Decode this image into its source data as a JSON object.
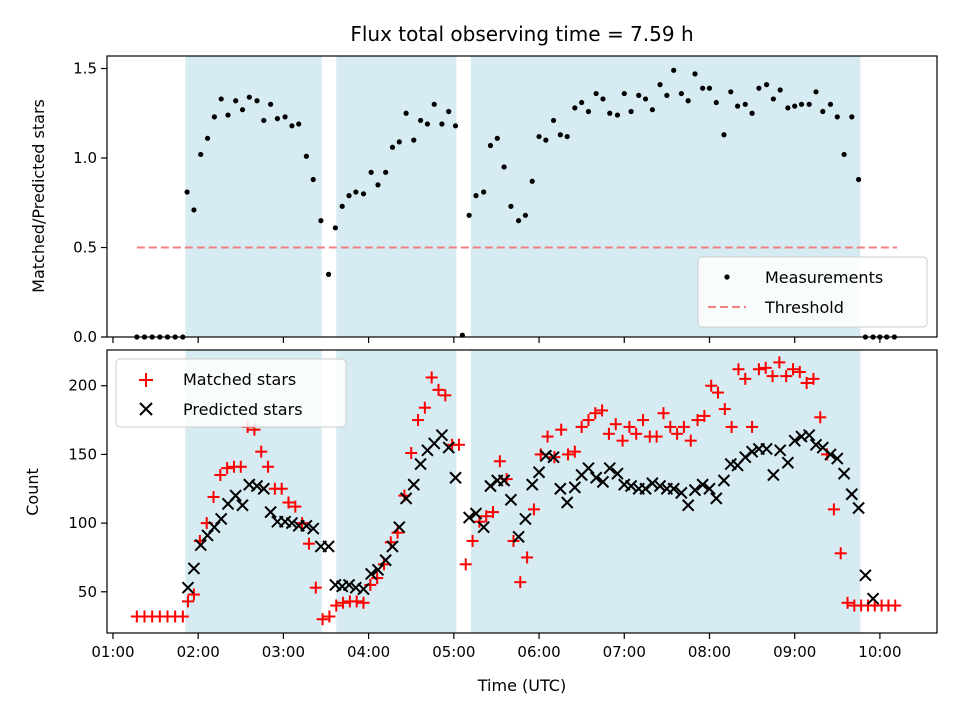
{
  "chart_data": [
    {
      "type": "scatter",
      "title": "Flux total observing time = 7.59 h",
      "ylabel": "Matched/Predicted stars",
      "ylim": [
        0,
        1.57
      ],
      "yticks": [
        0.0,
        0.5,
        1.0,
        1.5
      ],
      "ytick_labels": [
        "0.0",
        "0.5",
        "1.0",
        "1.5"
      ],
      "legend_position": "lower-right",
      "shaded_intervals": [
        [
          1.85,
          3.45
        ],
        [
          3.62,
          5.03
        ],
        [
          5.2,
          9.77
        ]
      ],
      "threshold": {
        "name": "Threshold",
        "value": 0.5,
        "x_range": [
          1.28,
          10.2
        ],
        "color": "#f08080"
      },
      "series": [
        {
          "name": "Measurements",
          "color": "#000000",
          "marker": "dot",
          "x": [
            1.28,
            1.37,
            1.46,
            1.55,
            1.64,
            1.73,
            1.82,
            1.87,
            1.95,
            2.03,
            2.11,
            2.19,
            2.27,
            2.35,
            2.44,
            2.52,
            2.6,
            2.69,
            2.77,
            2.85,
            2.93,
            3.02,
            3.1,
            3.18,
            3.27,
            3.35,
            3.44,
            3.53,
            3.61,
            3.69,
            3.77,
            3.85,
            3.94,
            4.03,
            4.11,
            4.2,
            4.28,
            4.36,
            4.44,
            4.53,
            4.61,
            4.69,
            4.77,
            4.86,
            4.94,
            5.02,
            5.1,
            5.18,
            5.26,
            5.35,
            5.43,
            5.51,
            5.59,
            5.67,
            5.76,
            5.84,
            5.92,
            6.0,
            6.08,
            6.17,
            6.25,
            6.33,
            6.42,
            6.5,
            6.58,
            6.67,
            6.75,
            6.83,
            6.92,
            7.0,
            7.08,
            7.17,
            7.25,
            7.33,
            7.42,
            7.5,
            7.58,
            7.67,
            7.75,
            7.83,
            7.92,
            8.0,
            8.08,
            8.17,
            8.25,
            8.33,
            8.42,
            8.5,
            8.58,
            8.67,
            8.75,
            8.83,
            8.92,
            9.0,
            9.08,
            9.17,
            9.25,
            9.33,
            9.42,
            9.5,
            9.58,
            9.67,
            9.75,
            9.83,
            9.92,
            10.0,
            10.08,
            10.17
          ],
          "y": [
            0,
            0,
            0,
            0,
            0,
            0,
            0,
            0.81,
            0.71,
            1.02,
            1.11,
            1.23,
            1.33,
            1.24,
            1.32,
            1.27,
            1.34,
            1.32,
            1.21,
            1.3,
            1.22,
            1.23,
            1.18,
            1.19,
            1.01,
            0.88,
            0.65,
            0.35,
            0.61,
            0.73,
            0.79,
            0.81,
            0.8,
            0.92,
            0.85,
            0.92,
            1.06,
            1.09,
            1.25,
            1.1,
            1.21,
            1.19,
            1.3,
            1.19,
            1.26,
            1.18,
            0.01,
            0.68,
            0.79,
            0.81,
            1.07,
            1.11,
            0.95,
            0.73,
            0.65,
            0.68,
            0.87,
            1.12,
            1.1,
            1.21,
            1.13,
            1.12,
            1.28,
            1.31,
            1.26,
            1.36,
            1.33,
            1.25,
            1.24,
            1.36,
            1.26,
            1.35,
            1.33,
            1.27,
            1.41,
            1.35,
            1.49,
            1.36,
            1.32,
            1.47,
            1.39,
            1.39,
            1.31,
            1.13,
            1.37,
            1.29,
            1.3,
            1.25,
            1.39,
            1.41,
            1.33,
            1.38,
            1.28,
            1.29,
            1.3,
            1.3,
            1.37,
            1.26,
            1.3,
            1.23,
            1.02,
            1.23,
            0.88,
            0,
            0,
            0,
            0,
            0
          ]
        }
      ]
    },
    {
      "type": "scatter",
      "xlabel": "Time (UTC)",
      "ylabel": "Count",
      "ylim": [
        20,
        226
      ],
      "xlim": [
        0.93,
        10.67
      ],
      "yticks": [
        50,
        100,
        150,
        200
      ],
      "ytick_labels": [
        "50",
        "100",
        "150",
        "200"
      ],
      "xticks": [
        1,
        2,
        3,
        4,
        5,
        6,
        7,
        8,
        9,
        10
      ],
      "xtick_labels": [
        "01:00",
        "02:00",
        "03:00",
        "04:00",
        "05:00",
        "06:00",
        "07:00",
        "08:00",
        "09:00",
        "10:00"
      ],
      "legend_position": "upper-left",
      "shaded_intervals": [
        [
          1.85,
          3.45
        ],
        [
          3.62,
          5.03
        ],
        [
          5.2,
          9.77
        ]
      ],
      "series": [
        {
          "name": "Matched stars",
          "color": "#ff0000",
          "marker": "plus",
          "x": [
            1.28,
            1.37,
            1.46,
            1.55,
            1.64,
            1.73,
            1.82,
            1.88,
            1.95,
            2.02,
            2.1,
            2.18,
            2.26,
            2.34,
            2.42,
            2.5,
            2.58,
            2.66,
            2.74,
            2.82,
            2.9,
            2.98,
            3.06,
            3.14,
            3.22,
            3.3,
            3.38,
            3.46,
            3.54,
            3.62,
            3.7,
            3.78,
            3.86,
            3.94,
            4.02,
            4.1,
            4.18,
            4.26,
            4.34,
            4.42,
            4.5,
            4.58,
            4.66,
            4.74,
            4.82,
            4.9,
            4.98,
            5.06,
            5.14,
            5.22,
            5.3,
            5.38,
            5.46,
            5.54,
            5.62,
            5.7,
            5.78,
            5.86,
            5.94,
            6.02,
            6.1,
            6.18,
            6.26,
            6.34,
            6.42,
            6.5,
            6.58,
            6.66,
            6.74,
            6.82,
            6.9,
            6.98,
            7.06,
            7.14,
            7.22,
            7.3,
            7.38,
            7.46,
            7.54,
            7.62,
            7.7,
            7.78,
            7.86,
            7.94,
            8.02,
            8.1,
            8.18,
            8.26,
            8.34,
            8.42,
            8.5,
            8.58,
            8.66,
            8.74,
            8.82,
            8.9,
            8.98,
            9.06,
            9.14,
            9.22,
            9.3,
            9.38,
            9.46,
            9.54,
            9.62,
            9.7,
            9.78,
            9.86,
            9.94,
            10.02,
            10.1,
            10.18
          ],
          "y": [
            32,
            32,
            32,
            32,
            32,
            32,
            32,
            43,
            48,
            87,
            100,
            119,
            135,
            140,
            141,
            141,
            170,
            168,
            152,
            141,
            125,
            125,
            115,
            112,
            100,
            85,
            53,
            30,
            32,
            40,
            42,
            43,
            43,
            42,
            55,
            60,
            70,
            86,
            93,
            120,
            151,
            175,
            184,
            206,
            197,
            193,
            157,
            157,
            70,
            87,
            101,
            105,
            108,
            145,
            132,
            87,
            57,
            75,
            110,
            150,
            163,
            148,
            168,
            150,
            152,
            170,
            175,
            180,
            182,
            165,
            172,
            160,
            170,
            165,
            175,
            163,
            163,
            180,
            170,
            165,
            170,
            160,
            175,
            178,
            200,
            195,
            183,
            170,
            212,
            205,
            170,
            212,
            213,
            207,
            217,
            207,
            212,
            210,
            202,
            205,
            177,
            150,
            110,
            78,
            42,
            40,
            40,
            40,
            40,
            40,
            40,
            40
          ],
          "y_note": ""
        },
        {
          "name": "Predicted stars",
          "color": "#000000",
          "marker": "x",
          "x": [
            1.88,
            1.95,
            2.03,
            2.11,
            2.19,
            2.27,
            2.35,
            2.44,
            2.52,
            2.6,
            2.69,
            2.77,
            2.85,
            2.93,
            3.02,
            3.1,
            3.18,
            3.27,
            3.35,
            3.44,
            3.53,
            3.61,
            3.69,
            3.77,
            3.85,
            3.94,
            4.03,
            4.11,
            4.2,
            4.28,
            4.36,
            4.44,
            4.53,
            4.61,
            4.69,
            4.77,
            4.86,
            4.94,
            5.02,
            5.18,
            5.26,
            5.35,
            5.43,
            5.51,
            5.59,
            5.67,
            5.76,
            5.84,
            5.92,
            6.0,
            6.08,
            6.17,
            6.25,
            6.33,
            6.42,
            6.5,
            6.58,
            6.67,
            6.75,
            6.83,
            6.92,
            7.0,
            7.08,
            7.17,
            7.25,
            7.33,
            7.42,
            7.5,
            7.58,
            7.67,
            7.75,
            7.83,
            7.92,
            8.0,
            8.08,
            8.17,
            8.25,
            8.33,
            8.42,
            8.5,
            8.58,
            8.67,
            8.75,
            8.83,
            8.92,
            9.0,
            9.08,
            9.17,
            9.25,
            9.33,
            9.42,
            9.5,
            9.58,
            9.67,
            9.75,
            9.83,
            9.92
          ],
          "y": [
            53,
            67,
            84,
            91,
            97,
            103,
            114,
            120,
            113,
            128,
            127,
            125,
            108,
            101,
            101,
            100,
            98,
            98,
            96,
            83,
            83,
            55,
            54,
            55,
            53,
            52,
            63,
            66,
            73,
            83,
            97,
            118,
            128,
            143,
            153,
            158,
            164,
            155,
            133,
            104,
            107,
            97,
            127,
            131,
            131,
            117,
            90,
            103,
            128,
            137,
            149,
            148,
            125,
            115,
            126,
            135,
            140,
            133,
            130,
            140,
            136,
            128,
            127,
            125,
            125,
            129,
            127,
            125,
            125,
            122,
            113,
            124,
            128,
            125,
            118,
            131,
            143,
            142,
            148,
            152,
            154,
            154,
            135,
            153,
            144,
            160,
            163,
            164,
            157,
            155,
            150,
            147,
            136,
            121,
            111,
            62,
            45
          ]
        }
      ]
    }
  ]
}
